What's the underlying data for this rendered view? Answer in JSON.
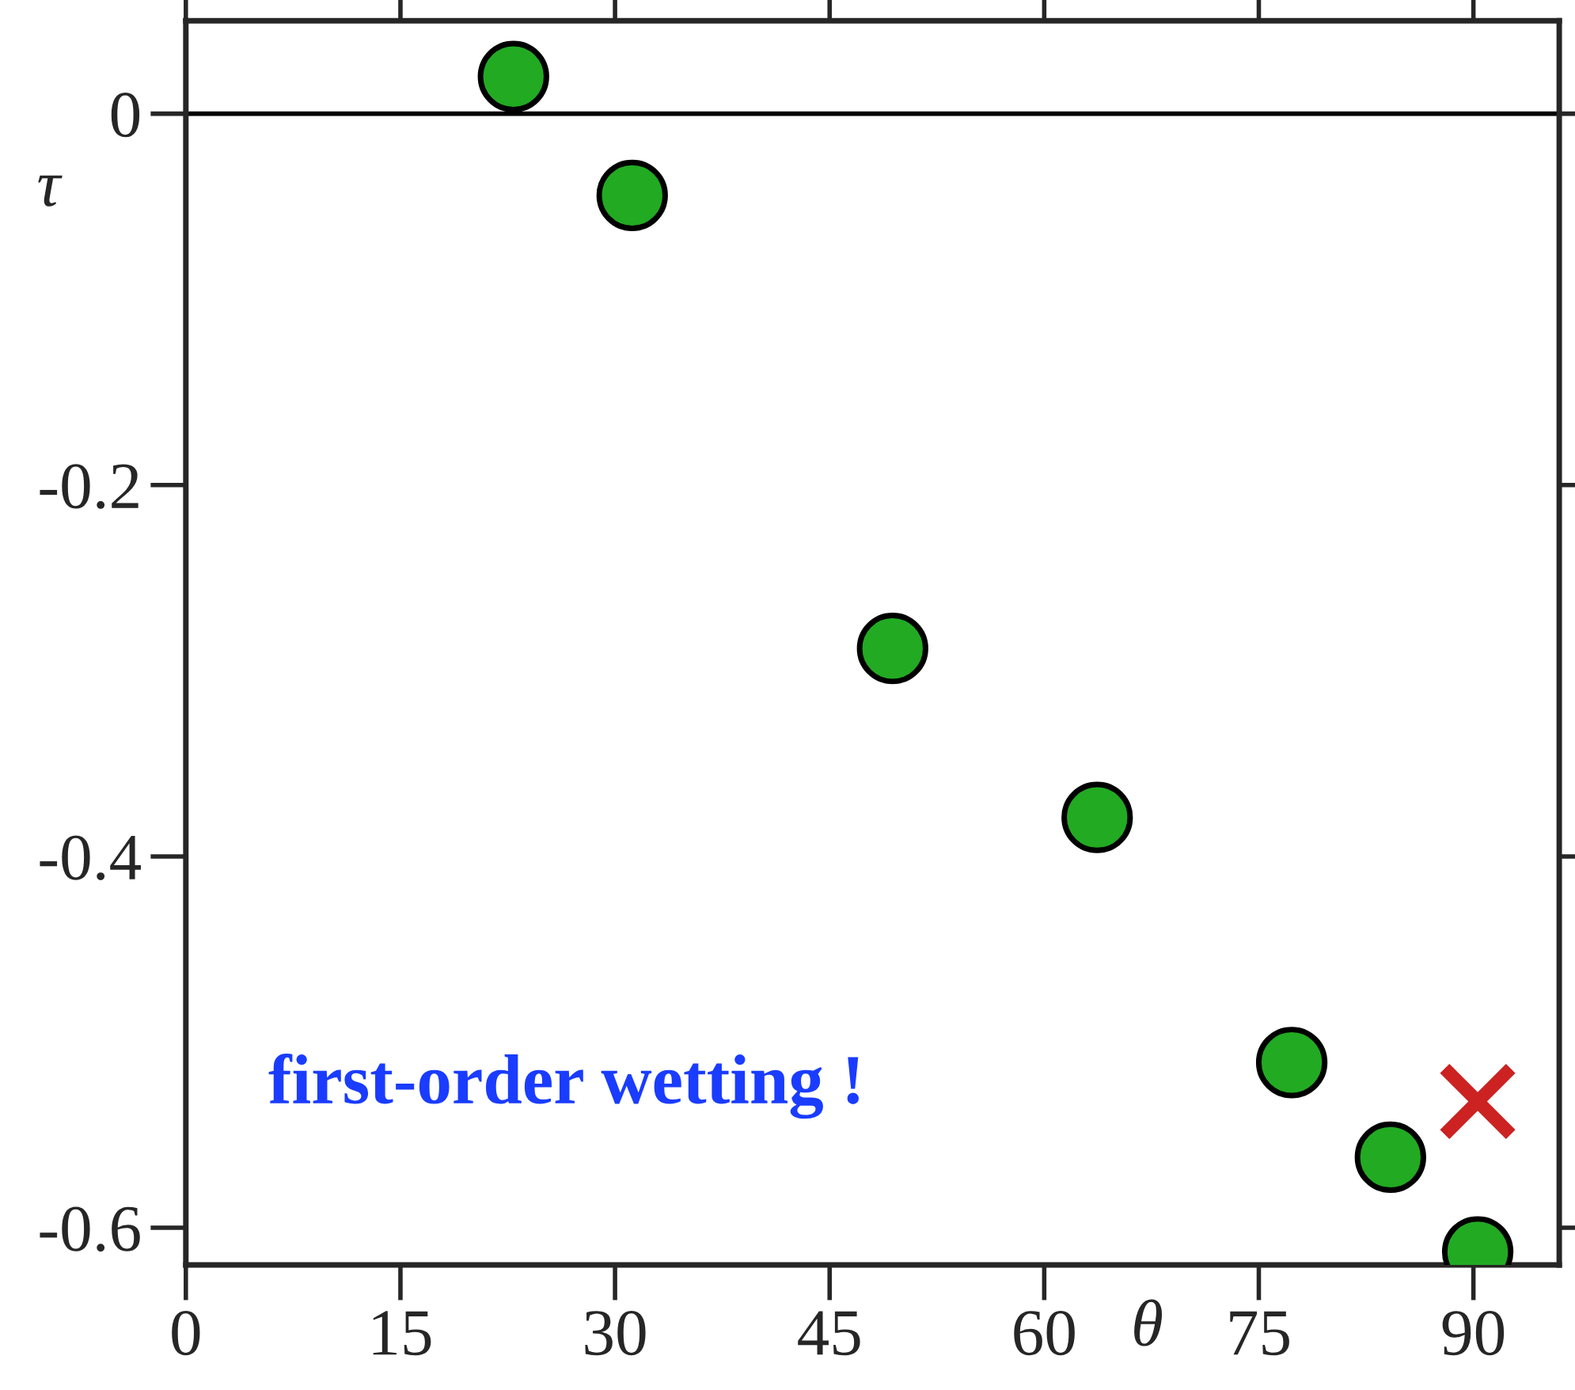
{
  "chart_data": {
    "type": "scatter",
    "xlabel": "θ",
    "ylabel": "τ",
    "xlim": [
      0,
      96
    ],
    "ylim": [
      -0.62,
      0.05
    ],
    "xticks": [
      0,
      15,
      30,
      45,
      60,
      75,
      90
    ],
    "yticks": [
      0,
      {
        "value": -0.2,
        "label": "-0.2"
      },
      {
        "value": -0.4,
        "label": "-0.4"
      },
      {
        "value": -0.6,
        "label": "-0.6"
      }
    ],
    "series": [
      {
        "color": "#22aa22",
        "marker": "circle",
        "x": [
          22.9,
          31.2,
          49.4,
          63.7,
          77.3,
          84.2,
          90.3
        ],
        "values": [
          0.02,
          -0.044,
          -0.288,
          -0.379,
          -0.511,
          -0.562,
          -0.613
        ]
      },
      {
        "color": "#cc2222",
        "marker": "cross",
        "x": [
          90.3
        ],
        "values": [
          -0.532
        ]
      }
    ],
    "ref_lines": [
      {
        "axis": "y",
        "value": 0,
        "color": "#000000"
      }
    ],
    "annotations": [
      "first-order wetting !"
    ],
    "grid": false,
    "legend": false
  }
}
